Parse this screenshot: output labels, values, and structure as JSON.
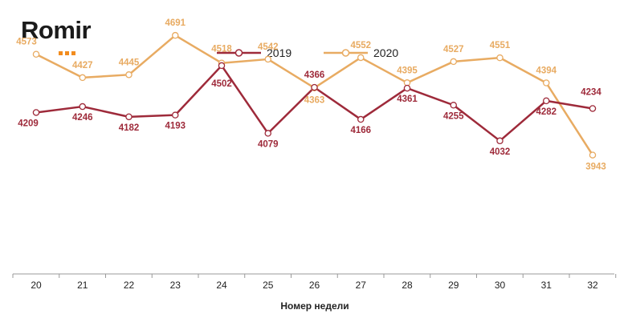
{
  "logo": {
    "text": "Romir"
  },
  "colors": {
    "s2019": "#9e2a3a",
    "s2020": "#e8ab62",
    "axis": "#999999"
  },
  "chart_data": {
    "type": "line",
    "xlabel": "Номер недели",
    "ylabel": "",
    "legend_position": "top-center",
    "grid": false,
    "x": [
      "20",
      "21",
      "22",
      "23",
      "24",
      "25",
      "26",
      "27",
      "28",
      "29",
      "30",
      "31",
      "32"
    ],
    "ylim": [
      3200,
      4800
    ],
    "series": [
      {
        "name": "2019",
        "values": [
          4209,
          4246,
          4182,
          4193,
          4502,
          4079,
          4366,
          4166,
          4361,
          4255,
          4032,
          4282,
          4234
        ]
      },
      {
        "name": "2020",
        "values": [
          4573,
          4427,
          4445,
          4691,
          4518,
          4542,
          4363,
          4552,
          4395,
          4527,
          4551,
          4394,
          3943
        ]
      }
    ]
  }
}
